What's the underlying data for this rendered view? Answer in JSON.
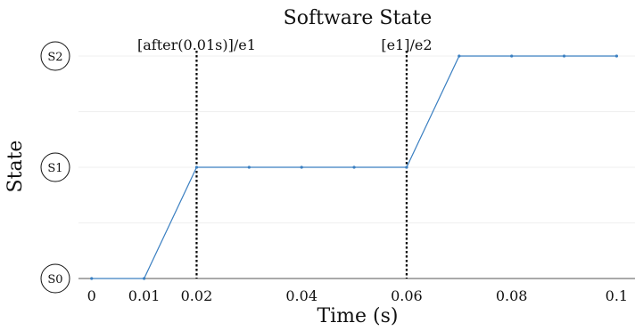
{
  "chart_data": {
    "type": "line",
    "title": "Software State",
    "xlabel": "Time (s)",
    "ylabel": "State",
    "x_ticks": [
      0,
      0.01,
      0.02,
      0.04,
      0.06,
      0.08,
      0.1
    ],
    "x_tick_labels": [
      "0",
      "0.01",
      "0.02",
      "0.04",
      "0.06",
      "0.08",
      "0.1"
    ],
    "y_states": [
      "S0",
      "S1",
      "S2"
    ],
    "xlim": [
      -0.0025,
      0.1035
    ],
    "ylim": [
      0,
      2
    ],
    "grid": true,
    "series": [
      {
        "x": [
          0,
          0.01,
          0.02,
          0.03,
          0.04,
          0.05,
          0.06,
          0.07,
          0.08,
          0.09,
          0.1
        ],
        "y": [
          0,
          0,
          1,
          1,
          1,
          1,
          1,
          2,
          2,
          2,
          2
        ],
        "color": "#3a7fc1"
      }
    ],
    "annotations": [
      {
        "x": 0.02,
        "label": "[after(0.01s)]/e1"
      },
      {
        "x": 0.06,
        "label": "[e1]/e2"
      }
    ]
  }
}
